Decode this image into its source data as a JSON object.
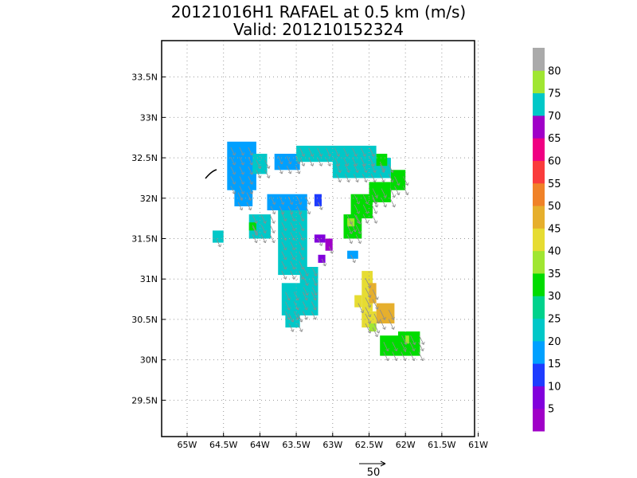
{
  "chart_data": {
    "type": "heatmap",
    "title": "20121016H1 RAFAEL at 0.5 km (m/s)",
    "subtitle": "Valid: 201210152324",
    "x_ticks": [
      "65W",
      "64.5W",
      "64W",
      "63.5W",
      "63W",
      "62.5W",
      "62W",
      "61.5W",
      "61W"
    ],
    "x_values": [
      -65,
      -64.5,
      -64,
      -63.5,
      -63,
      -62.5,
      -62,
      -61.5,
      -61
    ],
    "y_ticks": [
      "29.5N",
      "30N",
      "30.5N",
      "31N",
      "31.5N",
      "32N",
      "32.5N",
      "33N",
      "33.5N"
    ],
    "y_values": [
      29.5,
      30,
      30.5,
      31,
      31.5,
      32,
      32.5,
      33,
      33.5
    ],
    "xlim": [
      -65.35,
      -61.05
    ],
    "ylim": [
      29.05,
      33.95
    ],
    "grid": true,
    "colorbar": {
      "labels": [
        "5",
        "10",
        "15",
        "20",
        "25",
        "30",
        "35",
        "40",
        "45",
        "50",
        "55",
        "60",
        "65",
        "70",
        "75",
        "80"
      ],
      "colors": [
        "#a000c8",
        "#8200dc",
        "#1e3cff",
        "#00a0ff",
        "#00c8c8",
        "#00d28c",
        "#00dc00",
        "#a0e632",
        "#e6dc32",
        "#e6af2d",
        "#f08228",
        "#fa3c3c",
        "#f00082",
        "#a000c8",
        "#00c8c8",
        "#a0e632",
        "#aaaaaa"
      ],
      "placement": "right"
    },
    "reference_vector": {
      "label": "50",
      "value": 50
    },
    "patches": [
      {
        "lon0": -64.45,
        "lon1": -64.05,
        "lat0": 32.1,
        "lat1": 32.7,
        "speed": 20
      },
      {
        "lon0": -64.35,
        "lon1": -64.1,
        "lat0": 31.9,
        "lat1": 32.15,
        "speed": 20
      },
      {
        "lon0": -64.1,
        "lon1": -63.9,
        "lat0": 32.3,
        "lat1": 32.55,
        "speed": 25
      },
      {
        "lon0": -63.8,
        "lon1": -63.45,
        "lat0": 32.35,
        "lat1": 32.55,
        "speed": 20
      },
      {
        "lon0": -63.5,
        "lon1": -62.4,
        "lat0": 32.45,
        "lat1": 32.65,
        "speed": 25
      },
      {
        "lon0": -63.0,
        "lon1": -62.2,
        "lat0": 32.25,
        "lat1": 32.5,
        "speed": 25
      },
      {
        "lon0": -62.4,
        "lon1": -62.25,
        "lat0": 32.4,
        "lat1": 32.55,
        "speed": 35
      },
      {
        "lon0": -62.2,
        "lon1": -62.0,
        "lat0": 32.1,
        "lat1": 32.35,
        "speed": 35
      },
      {
        "lon0": -62.5,
        "lon1": -62.2,
        "lat0": 31.95,
        "lat1": 32.2,
        "speed": 35
      },
      {
        "lon0": -62.75,
        "lon1": -62.45,
        "lat0": 31.75,
        "lat1": 32.05,
        "speed": 35
      },
      {
        "lon0": -62.85,
        "lon1": -62.6,
        "lat0": 31.5,
        "lat1": 31.8,
        "speed": 35
      },
      {
        "lon0": -62.8,
        "lon1": -62.7,
        "lat0": 31.65,
        "lat1": 31.75,
        "speed": 40
      },
      {
        "lon0": -63.9,
        "lon1": -63.35,
        "lat0": 31.85,
        "lat1": 32.05,
        "speed": 20
      },
      {
        "lon0": -63.25,
        "lon1": -63.15,
        "lat0": 31.9,
        "lat1": 32.05,
        "speed": 15
      },
      {
        "lon0": -63.75,
        "lon1": -63.35,
        "lat0": 31.05,
        "lat1": 31.85,
        "speed": 25
      },
      {
        "lon0": -64.15,
        "lon1": -63.85,
        "lat0": 31.5,
        "lat1": 31.8,
        "speed": 25
      },
      {
        "lon0": -64.15,
        "lon1": -64.05,
        "lat0": 31.6,
        "lat1": 31.7,
        "speed": 35
      },
      {
        "lon0": -64.65,
        "lon1": -64.5,
        "lat0": 31.45,
        "lat1": 31.6,
        "speed": 25
      },
      {
        "lon0": -63.45,
        "lon1": -63.2,
        "lat0": 30.85,
        "lat1": 31.15,
        "speed": 25
      },
      {
        "lon0": -63.7,
        "lon1": -63.2,
        "lat0": 30.55,
        "lat1": 30.95,
        "speed": 25
      },
      {
        "lon0": -63.65,
        "lon1": -63.45,
        "lat0": 30.4,
        "lat1": 30.6,
        "speed": 25
      },
      {
        "lon0": -63.1,
        "lon1": -63.0,
        "lat0": 31.35,
        "lat1": 31.5,
        "speed": 5
      },
      {
        "lon0": -63.25,
        "lon1": -63.1,
        "lat0": 31.45,
        "lat1": 31.55,
        "speed": 10
      },
      {
        "lon0": -63.2,
        "lon1": -63.1,
        "lat0": 31.2,
        "lat1": 31.3,
        "speed": 10
      },
      {
        "lon0": -62.8,
        "lon1": -62.65,
        "lat0": 31.25,
        "lat1": 31.35,
        "speed": 20
      },
      {
        "lon0": -62.6,
        "lon1": -62.45,
        "lat0": 30.6,
        "lat1": 31.1,
        "speed": 45
      },
      {
        "lon0": -62.7,
        "lon1": -62.6,
        "lat0": 30.65,
        "lat1": 30.8,
        "speed": 45
      },
      {
        "lon0": -62.5,
        "lon1": -62.4,
        "lat0": 30.7,
        "lat1": 30.95,
        "speed": 50
      },
      {
        "lon0": -62.4,
        "lon1": -62.15,
        "lat0": 30.45,
        "lat1": 30.7,
        "speed": 50
      },
      {
        "lon0": -62.6,
        "lon1": -62.4,
        "lat0": 30.4,
        "lat1": 30.6,
        "speed": 45
      },
      {
        "lon0": -62.5,
        "lon1": -62.4,
        "lat0": 30.35,
        "lat1": 30.45,
        "speed": 40
      },
      {
        "lon0": -62.35,
        "lon1": -61.8,
        "lat0": 30.05,
        "lat1": 30.3,
        "speed": 35
      },
      {
        "lon0": -62.1,
        "lon1": -61.8,
        "lat0": 30.25,
        "lat1": 30.35,
        "speed": 35
      },
      {
        "lon0": -62.0,
        "lon1": -61.95,
        "lat0": 30.2,
        "lat1": 30.3,
        "speed": 40
      }
    ]
  }
}
